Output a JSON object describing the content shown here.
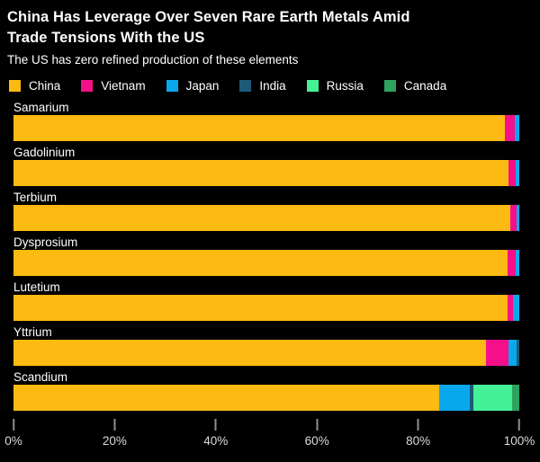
{
  "header": {
    "title_line1": "China Has Leverage Over Seven Rare Earth Metals Amid",
    "title_line2": "Trade Tensions With the US",
    "subtitle": "The US has zero refined production of these elements"
  },
  "colors": {
    "background": "#000000",
    "title_text": "#FFFFFF",
    "axis_text": "#DADADA",
    "tick_mark": "#8F8F8F"
  },
  "chart_data": {
    "type": "bar",
    "orientation": "horizontal",
    "stacked": true,
    "title": "China Has Leverage Over Seven Rare Earth Metals Amid Trade Tensions With the US",
    "subtitle": "The US has zero refined production of these elements",
    "categories": [
      "Samarium",
      "Gadolinium",
      "Terbium",
      "Dysprosium",
      "Lutetium",
      "Yttrium",
      "Scandium"
    ],
    "series": [
      {
        "name": "China",
        "color": "#FCBA12",
        "values": [
          97.1,
          97.8,
          98.3,
          97.6,
          97.6,
          93.4,
          84.1
        ]
      },
      {
        "name": "Vietnam",
        "color": "#F50F8A",
        "values": [
          2.1,
          1.5,
          1.1,
          1.7,
          1.1,
          4.5,
          0
        ]
      },
      {
        "name": "Japan",
        "color": "#09A8EC",
        "values": [
          0.8,
          0.7,
          0.6,
          0.7,
          1.3,
          1.6,
          6.2
        ]
      },
      {
        "name": "India",
        "color": "#1E5A78",
        "values": [
          0,
          0,
          0,
          0,
          0,
          0.5,
          0.7
        ]
      },
      {
        "name": "Russia",
        "color": "#45F196",
        "values": [
          0,
          0,
          0,
          0,
          0,
          0,
          7.5
        ]
      },
      {
        "name": "Canada",
        "color": "#2EA25E",
        "values": [
          0,
          0,
          0,
          0,
          0,
          0,
          1.5
        ]
      }
    ],
    "xlabel": "",
    "ylabel": "",
    "xlim": [
      0,
      100
    ],
    "x_ticks": [
      "0%",
      "20%",
      "40%",
      "60%",
      "80%",
      "100%"
    ],
    "x_tick_values": [
      0,
      20,
      40,
      60,
      80,
      100
    ],
    "grid": false,
    "legend_position": "top",
    "units": "percent share of refined production"
  }
}
